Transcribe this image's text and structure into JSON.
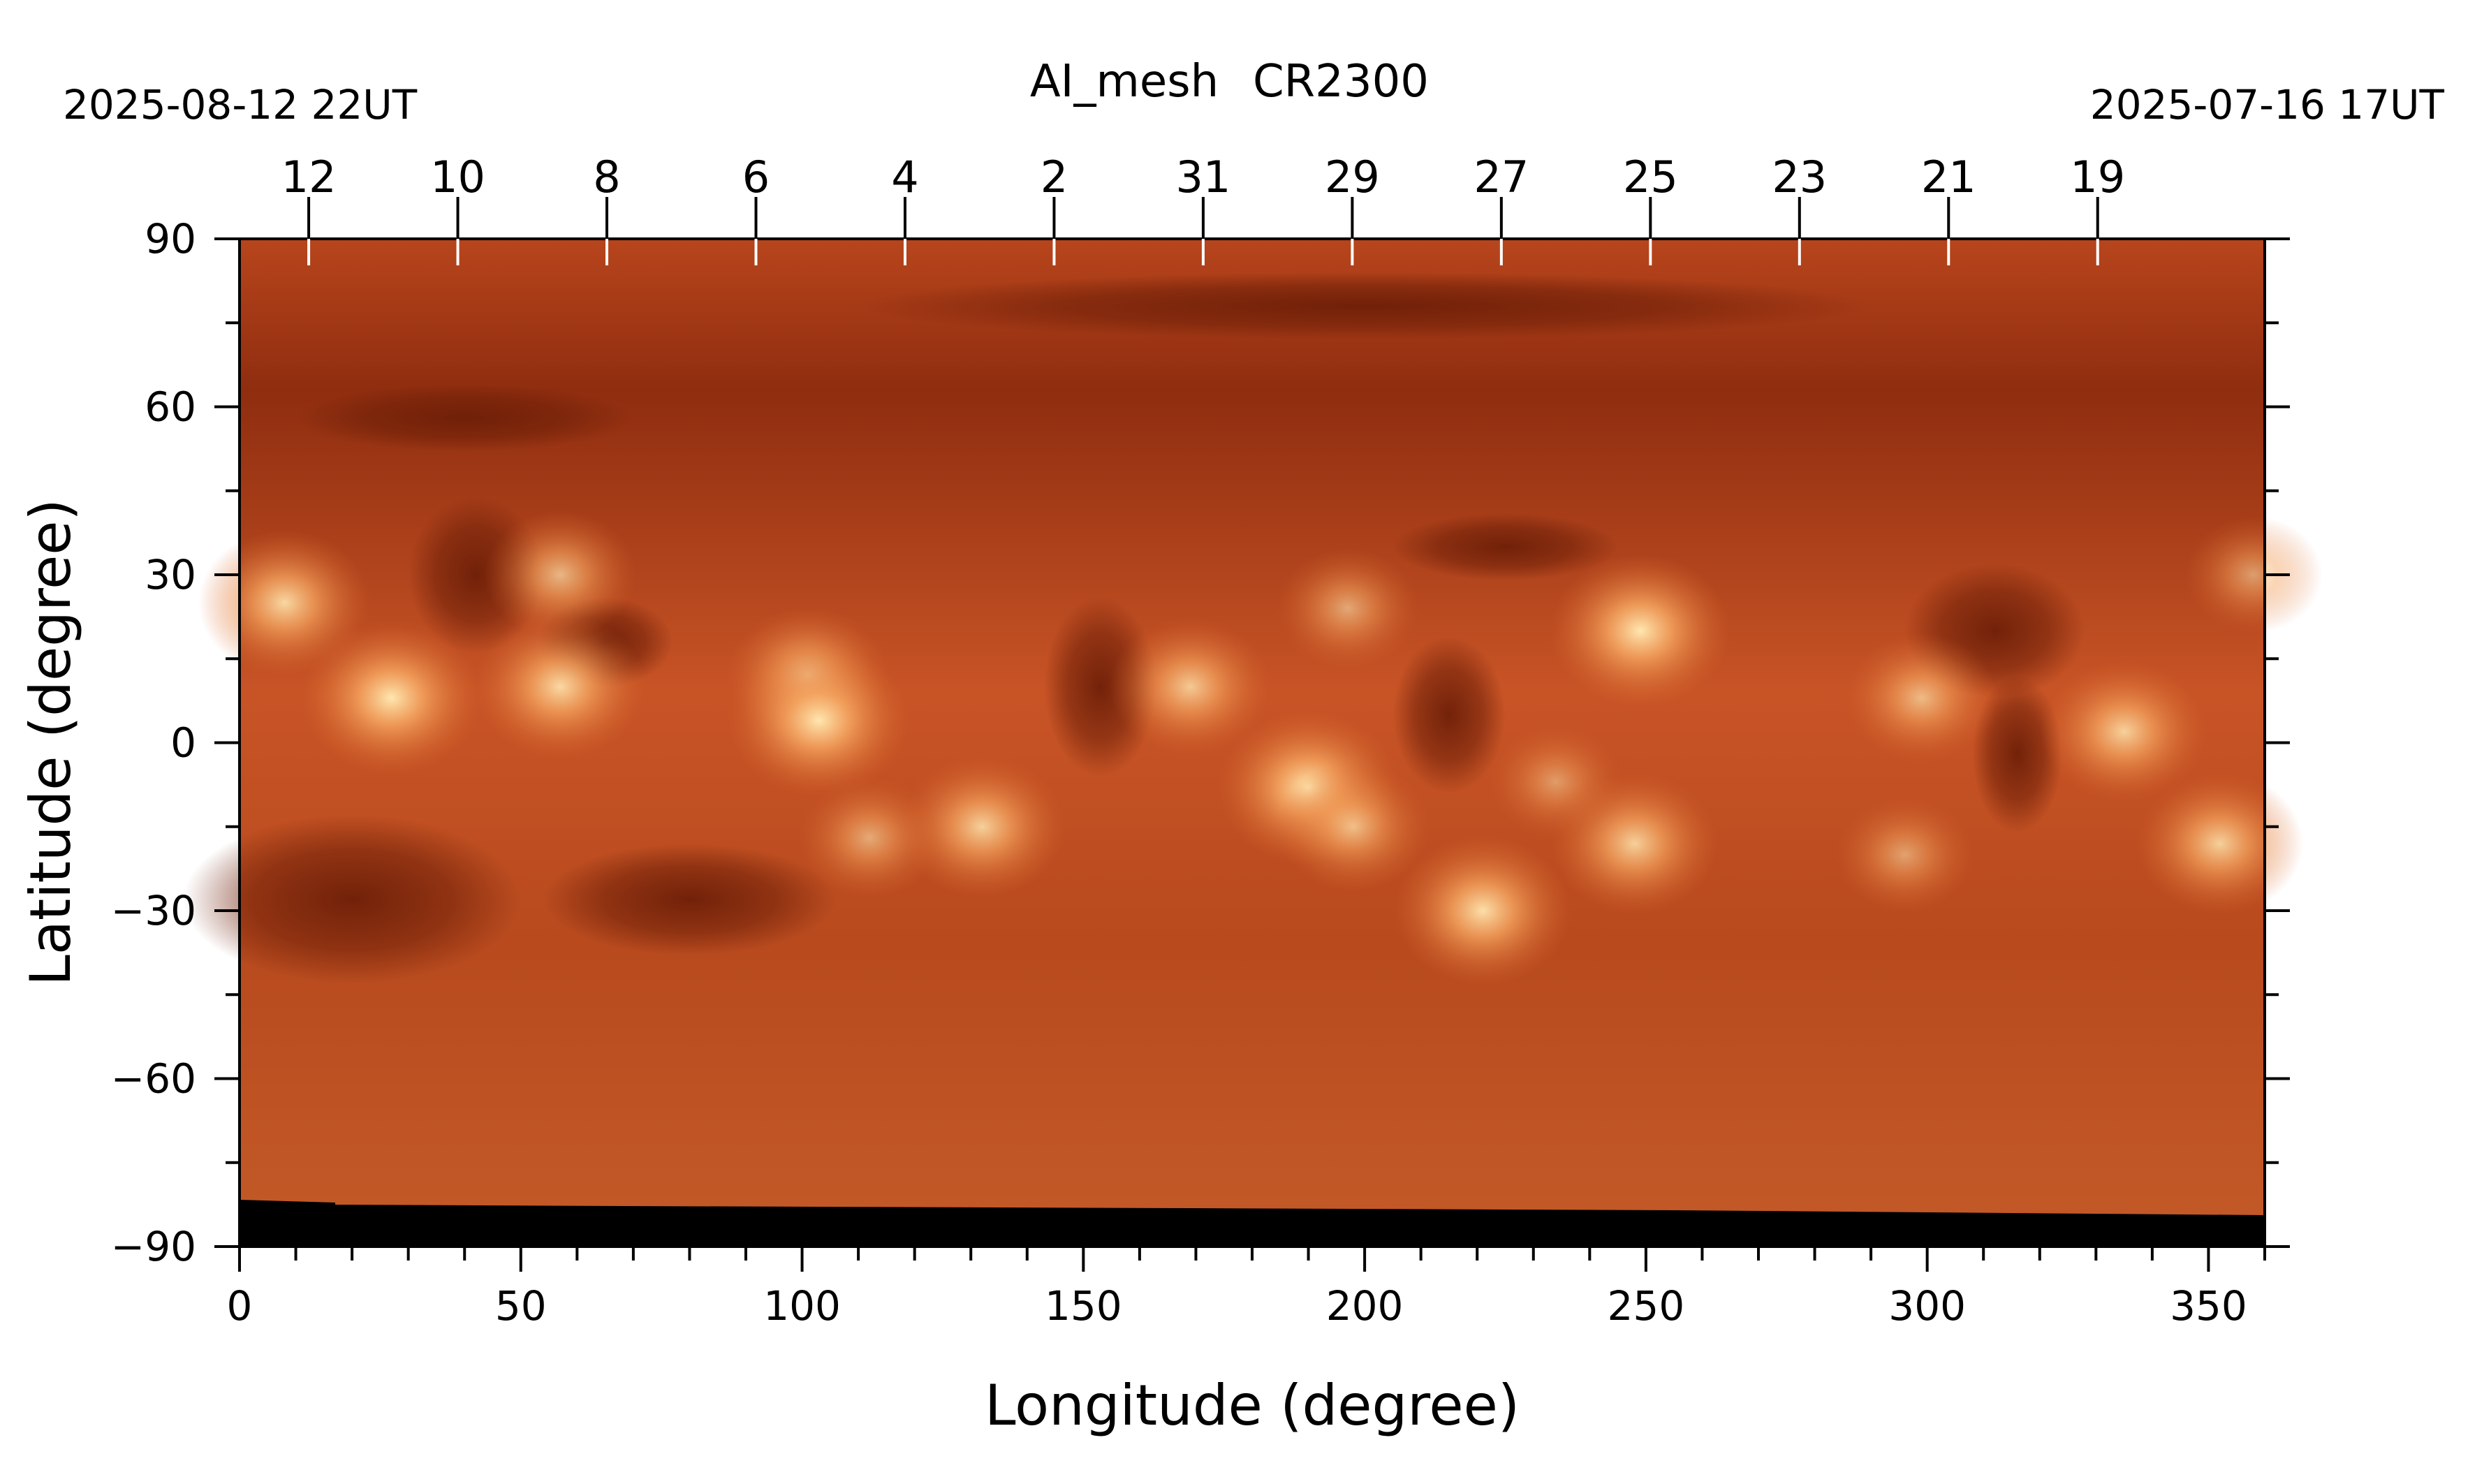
{
  "header": {
    "title_product": "AI_mesh",
    "title_rotation": "CR2300",
    "start_time": "2025-08-12 22UT",
    "end_time": "2025-07-16 17UT"
  },
  "axes": {
    "xlabel": "Longitude (degree)",
    "ylabel": "Latitude (degree)",
    "xlim": [
      0,
      360
    ],
    "ylim": [
      -90,
      90
    ],
    "x_ticks": [
      "0",
      "50",
      "100",
      "150",
      "200",
      "250",
      "300",
      "350"
    ],
    "x_tick_values": [
      0,
      50,
      100,
      150,
      200,
      250,
      300,
      350
    ],
    "y_ticks": [
      "90",
      "60",
      "30",
      "0",
      "−30",
      "−60",
      "−90"
    ],
    "y_tick_values": [
      90,
      60,
      30,
      0,
      -30,
      -60,
      -90
    ],
    "date_ticks": [
      "12",
      "10",
      "8",
      "6",
      "4",
      "2",
      "31",
      "29",
      "27",
      "25",
      "23",
      "21",
      "19"
    ],
    "date_tick_longitudes": [
      12.3,
      38.8,
      65.3,
      91.8,
      118.3,
      144.8,
      171.3,
      197.8,
      224.3,
      250.8,
      277.3,
      303.8,
      330.3
    ]
  },
  "map": {
    "colormap": "sdoaia193",
    "colors": {
      "background": "#b2421a",
      "dark": "#6e1f08",
      "bright": "#ffe7b0",
      "nodata": "#000000"
    },
    "active_regions": [
      {
        "lon": 8,
        "lat": 25,
        "intensity": 0.9
      },
      {
        "lon": 27,
        "lat": 8,
        "intensity": 1.0
      },
      {
        "lon": 57,
        "lat": 30,
        "intensity": 0.7
      },
      {
        "lon": 57,
        "lat": 10,
        "intensity": 0.9
      },
      {
        "lon": 101,
        "lat": 12,
        "intensity": 0.8
      },
      {
        "lon": 103,
        "lat": 4,
        "intensity": 1.0
      },
      {
        "lon": 132,
        "lat": -15,
        "intensity": 0.85
      },
      {
        "lon": 112,
        "lat": -17,
        "intensity": 0.6
      },
      {
        "lon": 169,
        "lat": 10,
        "intensity": 0.8
      },
      {
        "lon": 190,
        "lat": -8,
        "intensity": 1.0
      },
      {
        "lon": 198,
        "lat": -15,
        "intensity": 0.7
      },
      {
        "lon": 197,
        "lat": 24,
        "intensity": 0.6
      },
      {
        "lon": 221,
        "lat": -30,
        "intensity": 0.95
      },
      {
        "lon": 249,
        "lat": 20,
        "intensity": 1.0
      },
      {
        "lon": 248,
        "lat": -18,
        "intensity": 0.85
      },
      {
        "lon": 234,
        "lat": -7,
        "intensity": 0.5
      },
      {
        "lon": 299,
        "lat": 8,
        "intensity": 0.7
      },
      {
        "lon": 296,
        "lat": -20,
        "intensity": 0.55
      },
      {
        "lon": 335,
        "lat": 2,
        "intensity": 0.85
      },
      {
        "lon": 352,
        "lat": -18,
        "intensity": 0.85
      },
      {
        "lon": 358,
        "lat": 30,
        "intensity": 0.55
      }
    ],
    "coronal_holes": [
      {
        "lon": 42,
        "lat": 30,
        "rlon": 12,
        "rlat": 14
      },
      {
        "lon": 65,
        "lat": 18,
        "rlon": 12,
        "rlat": 8
      },
      {
        "lon": 20,
        "lat": -28,
        "rlon": 30,
        "rlat": 15
      },
      {
        "lon": 80,
        "lat": -28,
        "rlon": 26,
        "rlat": 10
      },
      {
        "lon": 153,
        "lat": 10,
        "rlon": 10,
        "rlat": 16
      },
      {
        "lon": 215,
        "lat": 5,
        "rlon": 10,
        "rlat": 14
      },
      {
        "lon": 225,
        "lat": 35,
        "rlon": 20,
        "rlat": 6
      },
      {
        "lon": 312,
        "lat": 20,
        "rlon": 16,
        "rlat": 12
      },
      {
        "lon": 316,
        "lat": -2,
        "rlon": 8,
        "rlat": 14
      },
      {
        "lon": 200,
        "lat": 78,
        "rlon": 90,
        "rlat": 6
      },
      {
        "lon": 40,
        "lat": 58,
        "rlon": 30,
        "rlat": 6
      }
    ]
  }
}
